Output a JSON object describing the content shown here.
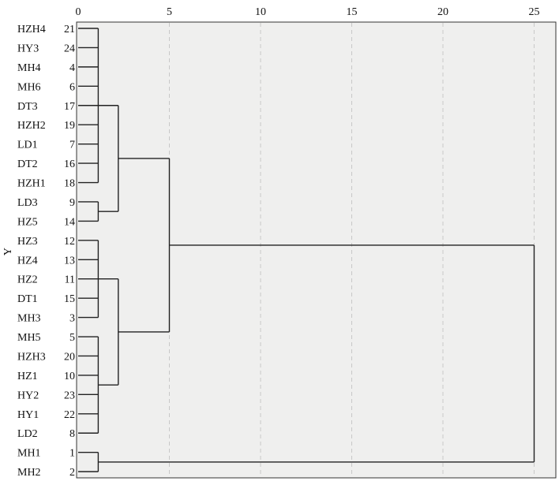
{
  "chart_data": {
    "type": "dendrogram",
    "y_axis_label": "Y",
    "x_ticks": [
      0,
      5,
      10,
      15,
      20,
      25
    ],
    "xlim": [
      0,
      25.7
    ],
    "grid": "vertical dashed lines at x ticks",
    "leaves": [
      {
        "name": "HZH4",
        "num": "21"
      },
      {
        "name": "HY3",
        "num": "24"
      },
      {
        "name": "MH4",
        "num": "4"
      },
      {
        "name": "MH6",
        "num": "6"
      },
      {
        "name": "DT3",
        "num": "17"
      },
      {
        "name": "HZH2",
        "num": "19"
      },
      {
        "name": "LD1",
        "num": "7"
      },
      {
        "name": "DT2",
        "num": "16"
      },
      {
        "name": "HZH1",
        "num": "18"
      },
      {
        "name": "LD3",
        "num": "9"
      },
      {
        "name": "HZ5",
        "num": "14"
      },
      {
        "name": "HZ3",
        "num": "12"
      },
      {
        "name": "HZ4",
        "num": "13"
      },
      {
        "name": "HZ2",
        "num": "11"
      },
      {
        "name": "DT1",
        "num": "15"
      },
      {
        "name": "MH3",
        "num": "3"
      },
      {
        "name": "MH5",
        "num": "5"
      },
      {
        "name": "HZH3",
        "num": "20"
      },
      {
        "name": "HZ1",
        "num": "10"
      },
      {
        "name": "HY2",
        "num": "23"
      },
      {
        "name": "HY1",
        "num": "22"
      },
      {
        "name": "LD2",
        "num": "8"
      },
      {
        "name": "MH1",
        "num": "1"
      },
      {
        "name": "MH2",
        "num": "2"
      }
    ],
    "merges": [
      {
        "children": [
          "L0",
          "L1",
          "L2",
          "L3",
          "L4",
          "L5",
          "L6",
          "L7",
          "L8"
        ],
        "height": 1.1
      },
      {
        "children": [
          "L9",
          "L10"
        ],
        "height": 1.1
      },
      {
        "children": [
          "C0",
          "C1"
        ],
        "height": 2.2
      },
      {
        "children": [
          "L11",
          "L12",
          "L13",
          "L14",
          "L15"
        ],
        "height": 1.1
      },
      {
        "children": [
          "L16",
          "L17",
          "L18",
          "L19",
          "L20",
          "L21"
        ],
        "height": 1.1
      },
      {
        "children": [
          "C3",
          "C4"
        ],
        "height": 2.2
      },
      {
        "children": [
          "C2",
          "C5"
        ],
        "height": 5.0
      },
      {
        "children": [
          "L22",
          "L23"
        ],
        "height": 1.1
      },
      {
        "children": [
          "C6",
          "C7"
        ],
        "height": 25.0
      }
    ]
  }
}
